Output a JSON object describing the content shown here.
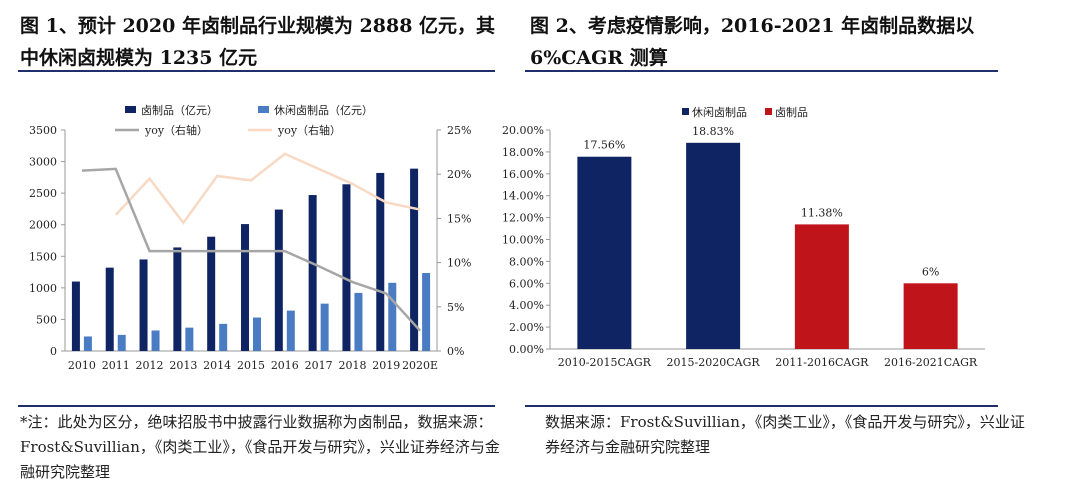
{
  "figure1": {
    "title": "图 1、预计 2020 年卤制品行业规模为 2888 亿元，其中休闲卤规模为 1235 亿元",
    "note": "*注：此处为区分，绝味招股书中披露行业数据称为卤制品，数据来源：Frost&Suvillian，《肉类工业》，《食品开发与研究》，兴业证券经济与金融研究院整理"
  },
  "figure2": {
    "title": "图 2、考虑疫情影响，2016-2021 年卤制品数据以 6%CAGR 测算",
    "note": "数据来源：Frost&Suvillian，《肉类工业》，《食品开发与研究》，兴业证券经济与金融研究院整理"
  },
  "colors": {
    "navy": "#0f2462",
    "blue": "#4a7cc4",
    "gray": "#a6a6a6",
    "peach": "#f8d9c4",
    "red": "#c0141b",
    "rule": "#1f2f6b"
  },
  "chart_data": [
    {
      "type": "bar",
      "categories": [
        "2010",
        "2011",
        "2012",
        "2013",
        "2014",
        "2015",
        "2016",
        "2017",
        "2018",
        "2019",
        "2020E"
      ],
      "series": [
        {
          "name": "卤制品（亿元）",
          "axis": "left",
          "kind": "bar",
          "color": "#0f2462",
          "values": [
            1100,
            1320,
            1450,
            1640,
            1810,
            2010,
            2240,
            2470,
            2640,
            2820,
            2888
          ]
        },
        {
          "name": "休闲卤制品（亿元）",
          "axis": "left",
          "kind": "bar",
          "color": "#4a7cc4",
          "values": [
            230,
            255,
            325,
            370,
            430,
            530,
            640,
            750,
            920,
            1080,
            1235
          ]
        },
        {
          "name": "yoy（右轴）",
          "axis": "right",
          "kind": "line",
          "color": "#a6a6a6",
          "values": [
            20.4,
            20.6,
            11.3,
            11.3,
            11.3,
            11.3,
            11.3,
            9.6,
            7.8,
            6.5,
            2.3
          ]
        },
        {
          "name": "yoy（右轴）",
          "axis": "right",
          "kind": "line",
          "color": "#f8d9c4",
          "values": [
            null,
            15.4,
            19.5,
            14.5,
            19.8,
            19.3,
            22.3,
            20.6,
            18.9,
            16.8,
            16.0
          ]
        }
      ],
      "ylim": [
        0,
        3500
      ],
      "yticks": [
        "0",
        "500",
        "1000",
        "1500",
        "2000",
        "2500",
        "3000",
        "3500"
      ],
      "y2lim": [
        0,
        25
      ],
      "y2ticks": [
        "0%",
        "5%",
        "10%",
        "15%",
        "20%",
        "25%"
      ],
      "legend": "top"
    },
    {
      "type": "bar",
      "categories": [
        "2010-2015CAGR",
        "2015-2020CAGR",
        "2011-2016CAGR",
        "2016-2021CAGR"
      ],
      "values": [
        17.56,
        18.83,
        11.38,
        6
      ],
      "value_labels": [
        "17.56%",
        "18.83%",
        "11.38%",
        "6%"
      ],
      "bar_series": [
        "休闲卤制品",
        "休闲卤制品",
        "卤制品",
        "卤制品"
      ],
      "legend_entries": [
        {
          "name": "休闲卤制品",
          "color": "#0f2462"
        },
        {
          "name": "卤制品",
          "color": "#c0141b"
        }
      ],
      "ylim": [
        0,
        20
      ],
      "yticks": [
        "0.00%",
        "2.00%",
        "4.00%",
        "6.00%",
        "8.00%",
        "10.00%",
        "12.00%",
        "14.00%",
        "16.00%",
        "18.00%",
        "20.00%"
      ],
      "legend": "top"
    }
  ]
}
